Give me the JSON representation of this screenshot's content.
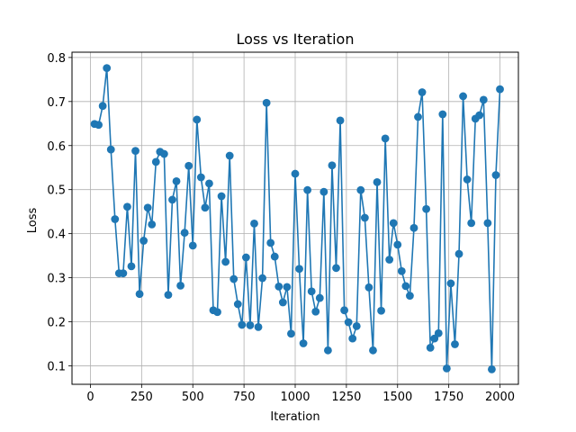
{
  "chart_data": {
    "type": "line",
    "title": "Loss vs Iteration",
    "xlabel": "Iteration",
    "ylabel": "Loss",
    "xlim": [
      -90,
      2090
    ],
    "ylim": [
      0.058,
      0.812
    ],
    "xticks": [
      0,
      250,
      500,
      750,
      1000,
      1250,
      1500,
      1750,
      2000
    ],
    "yticks": [
      0.1,
      0.2,
      0.3,
      0.4,
      0.5,
      0.6,
      0.7,
      0.8
    ],
    "grid": true,
    "color": "#1f77b4",
    "series": [
      {
        "name": "",
        "marker": "circle",
        "x": [
          20,
          40,
          60,
          80,
          100,
          120,
          140,
          160,
          180,
          200,
          220,
          240,
          260,
          280,
          300,
          320,
          340,
          360,
          380,
          400,
          420,
          440,
          460,
          480,
          500,
          520,
          540,
          560,
          580,
          600,
          620,
          640,
          660,
          680,
          700,
          720,
          740,
          760,
          780,
          800,
          820,
          840,
          860,
          880,
          900,
          920,
          940,
          960,
          980,
          1000,
          1020,
          1040,
          1060,
          1080,
          1100,
          1120,
          1140,
          1160,
          1180,
          1200,
          1220,
          1240,
          1260,
          1280,
          1300,
          1320,
          1340,
          1360,
          1380,
          1400,
          1420,
          1440,
          1460,
          1480,
          1500,
          1520,
          1540,
          1560,
          1580,
          1600,
          1620,
          1640,
          1660,
          1680,
          1700,
          1720,
          1740,
          1760,
          1780,
          1800,
          1820,
          1840,
          1860,
          1880,
          1900,
          1920,
          1940,
          1960,
          1980,
          2000
        ],
        "y": [
          0.649,
          0.647,
          0.69,
          0.776,
          0.591,
          0.433,
          0.31,
          0.31,
          0.461,
          0.326,
          0.588,
          0.263,
          0.384,
          0.459,
          0.421,
          0.563,
          0.586,
          0.581,
          0.261,
          0.477,
          0.519,
          0.282,
          0.402,
          0.554,
          0.373,
          0.659,
          0.528,
          0.459,
          0.514,
          0.226,
          0.222,
          0.485,
          0.336,
          0.577,
          0.297,
          0.24,
          0.193,
          0.346,
          0.192,
          0.423,
          0.188,
          0.299,
          0.697,
          0.379,
          0.348,
          0.28,
          0.244,
          0.279,
          0.173,
          0.536,
          0.32,
          0.151,
          0.499,
          0.269,
          0.223,
          0.254,
          0.495,
          0.135,
          0.555,
          0.322,
          0.657,
          0.226,
          0.199,
          0.162,
          0.19,
          0.499,
          0.436,
          0.278,
          0.135,
          0.517,
          0.225,
          0.616,
          0.341,
          0.424,
          0.375,
          0.315,
          0.281,
          0.259,
          0.413,
          0.665,
          0.721,
          0.456,
          0.141,
          0.162,
          0.174,
          0.671,
          0.094,
          0.287,
          0.149,
          0.354,
          0.712,
          0.523,
          0.424,
          0.661,
          0.669,
          0.704,
          0.424,
          0.092,
          0.533,
          0.728
        ]
      }
    ]
  }
}
